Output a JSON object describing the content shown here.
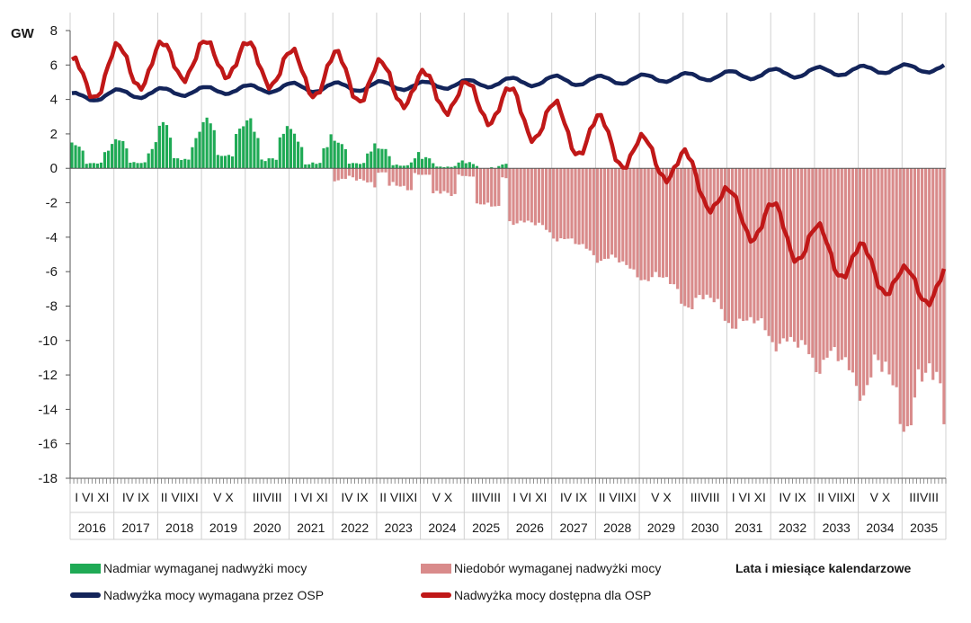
{
  "chart_data": {
    "type": "bar",
    "unit_label": "GW",
    "xlabel": "Lata i miesiące kalendarzowe",
    "ylim": [
      -18,
      8
    ],
    "yticks": [
      8,
      6,
      4,
      2,
      0,
      -2,
      -4,
      -6,
      -8,
      -10,
      -12,
      -14,
      -16,
      -18
    ],
    "grid": "vertical-yearly",
    "legend_position": "bottom",
    "years": [
      "2016",
      "2017",
      "2018",
      "2019",
      "2020",
      "2021",
      "2022",
      "2023",
      "2024",
      "2025",
      "2026",
      "2027",
      "2028",
      "2029",
      "2030",
      "2031",
      "2032",
      "2033",
      "2034",
      "2035"
    ],
    "month_labels": [
      "I VI XI",
      "IV IX",
      "II VIIXI",
      "V X",
      "IIIVIII",
      "I VI XI",
      "IV IX",
      "II VIIXI",
      "V X",
      "IIIVIII",
      "I VI XI",
      "IV IX",
      "II VIIXI",
      "V X",
      "IIIVIII",
      "I VI XI",
      "IV IX",
      "II VIIXI",
      "V X",
      "IIIVIII"
    ],
    "colors": {
      "surplus": "#1faa55",
      "deficit": "#d98b8b",
      "required": "#13245a",
      "available": "#c01818",
      "grid": "#d0d0d0"
    },
    "series": [
      {
        "name": "Nadmiar wymaganej nadwyżki mocy",
        "kind": "bar",
        "yearly_avg": [
          0.9,
          1.0,
          1.5,
          2.0,
          1.4,
          0.9,
          0.9,
          0.5,
          0.2,
          0.1,
          0,
          0,
          0,
          0,
          0,
          0,
          0,
          0,
          0,
          0
        ],
        "yearly_peak": [
          1.5,
          1.7,
          2.7,
          3.0,
          3.2,
          2.3,
          1.6,
          1.2,
          0.7,
          0.4,
          0,
          0,
          0,
          0,
          0,
          0,
          0,
          0,
          0,
          0
        ]
      },
      {
        "name": "Niedobór wymaganej nadwyżki mocy",
        "kind": "bar",
        "yearly_avg": [
          0,
          0,
          0,
          0,
          0,
          0,
          -0.3,
          -0.8,
          -1.3,
          -1.7,
          -2.6,
          -3.6,
          -4.8,
          -5.9,
          -7.0,
          -8.2,
          -9.3,
          -10.4,
          -11.2,
          -12.3
        ],
        "yearly_peak": [
          0,
          0,
          0,
          0,
          0,
          0,
          -0.8,
          -1.3,
          -1.9,
          -2.3,
          -3.2,
          -4.2,
          -5.5,
          -6.5,
          -8.0,
          -9.2,
          -10.5,
          -12.1,
          -13.5,
          -15.3
        ]
      },
      {
        "name": "Nadwyżka mocy wymagana przez OSP",
        "kind": "line",
        "yearly": [
          4.1,
          4.3,
          4.4,
          4.5,
          4.6,
          4.7,
          4.7,
          4.8,
          4.8,
          4.9,
          5.0,
          5.1,
          5.1,
          5.2,
          5.3,
          5.4,
          5.5,
          5.6,
          5.7,
          5.8
        ]
      },
      {
        "name": "Nadwyżka mocy dostępna dla OSP",
        "kind": "line",
        "yearly": [
          5.0,
          5.8,
          6.1,
          6.4,
          6.3,
          5.6,
          5.4,
          5.0,
          4.6,
          4.0,
          3.5,
          2.5,
          1.8,
          0.8,
          0.0,
          -2.4,
          -3.3,
          -4.6,
          -5.5,
          -6.8
        ]
      }
    ]
  }
}
